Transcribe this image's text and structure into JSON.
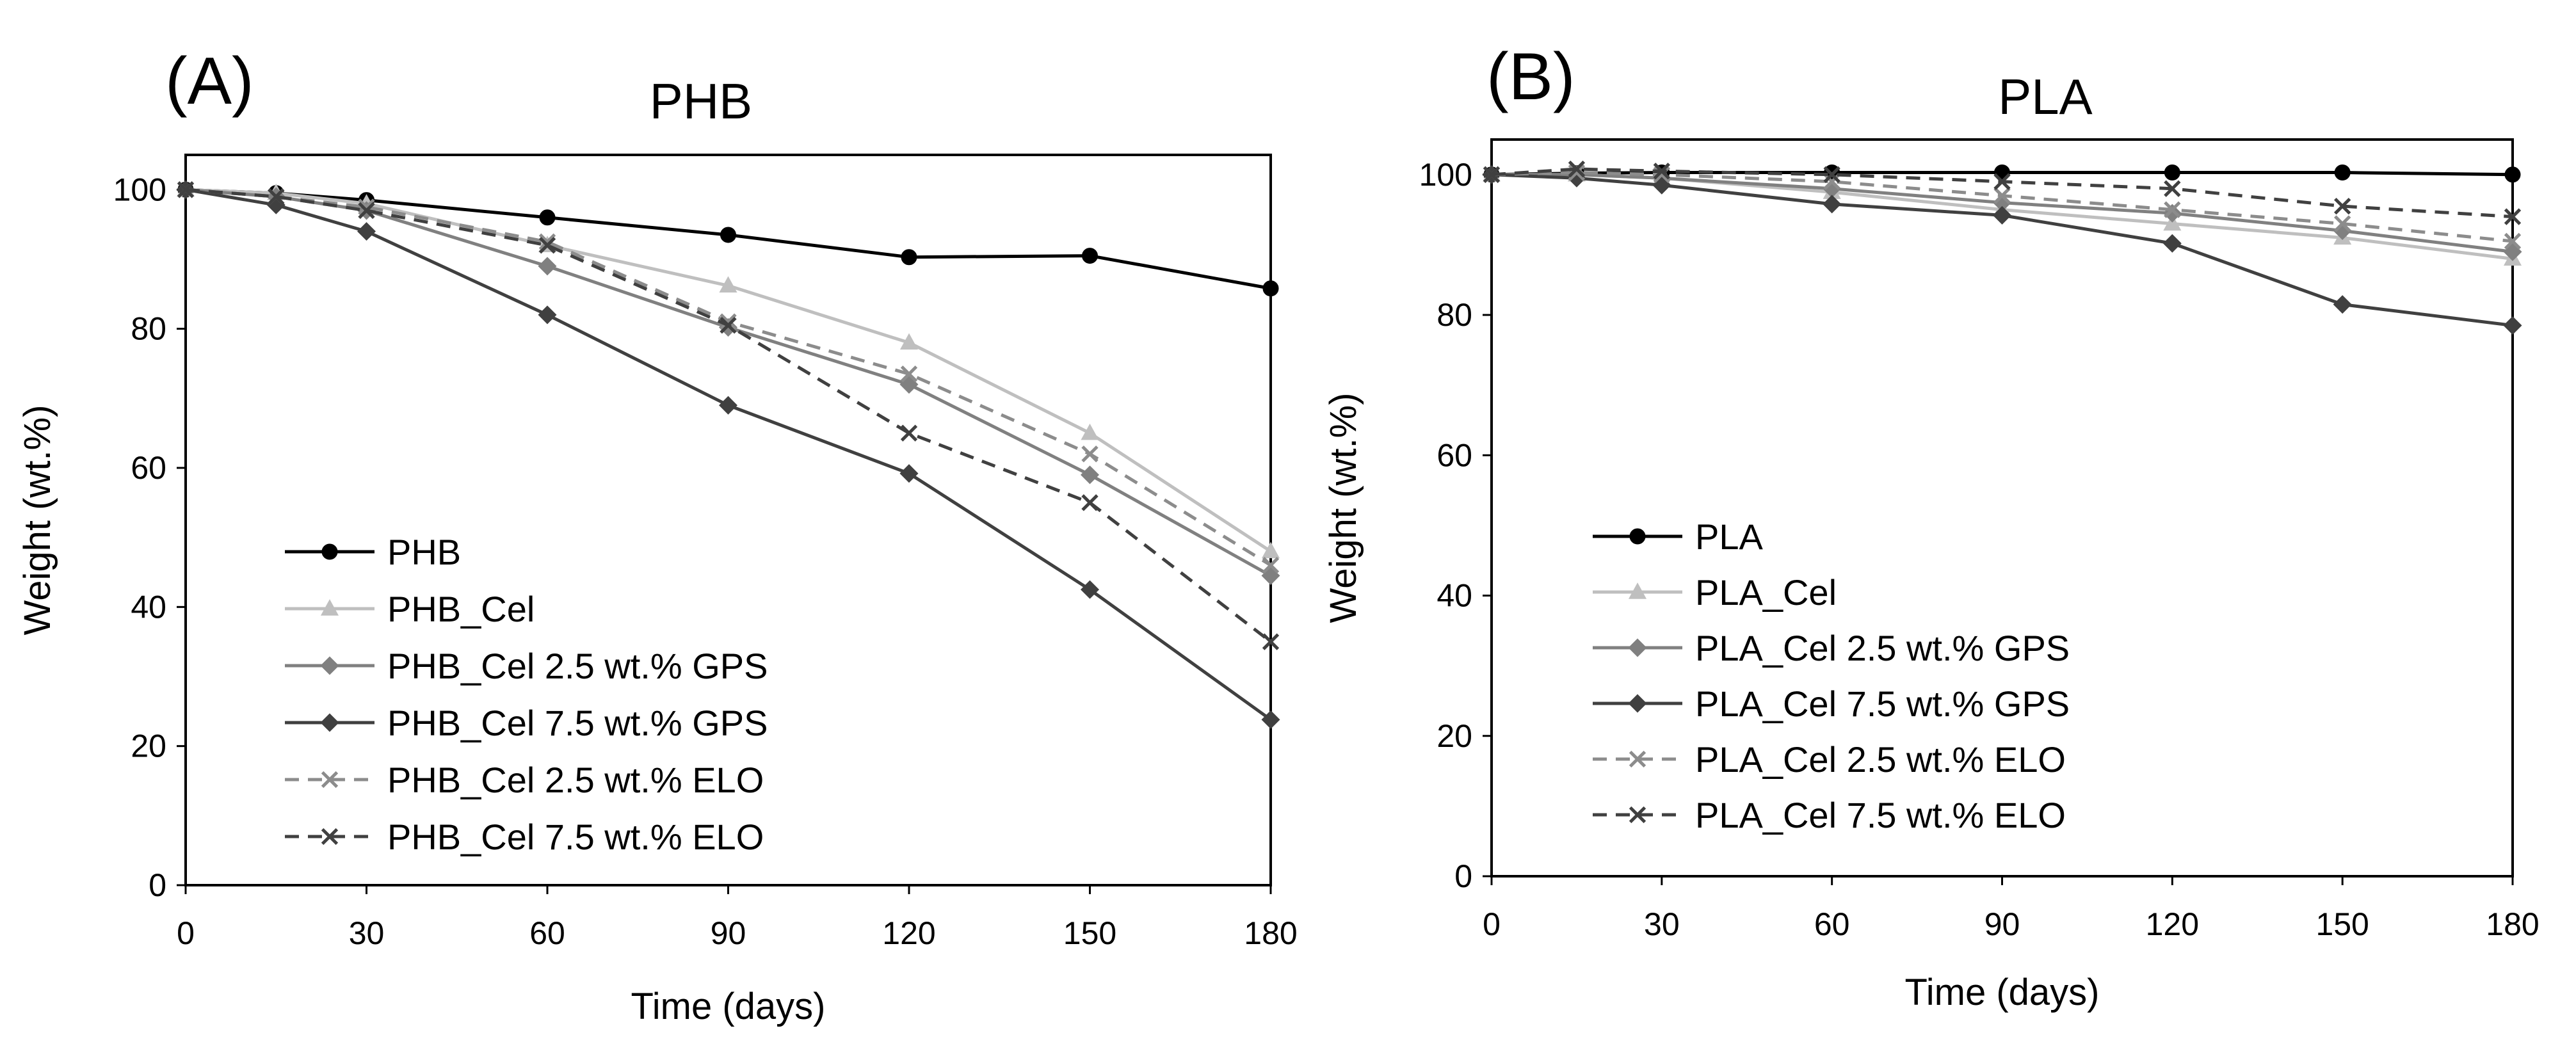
{
  "chart_data": [
    {
      "type": "line",
      "panel_label": "(A)",
      "title": "PHB",
      "xlabel": "Time (days)",
      "ylabel": "Weight (wt.%)",
      "xlim": [
        0,
        180
      ],
      "ylim": [
        0,
        105
      ],
      "xticks": [
        0,
        30,
        60,
        90,
        120,
        150,
        180
      ],
      "yticks": [
        0,
        20,
        40,
        60,
        80,
        100
      ],
      "grid": false,
      "legend_position": "bottom-left",
      "series": [
        {
          "name": "PHB",
          "color": "#000000",
          "dash": "solid",
          "marker": "circle",
          "x": [
            0,
            15,
            30,
            60,
            90,
            120,
            150,
            180
          ],
          "y": [
            100,
            99.5,
            98.5,
            96,
            93.5,
            90.3,
            90.5,
            85.8
          ]
        },
        {
          "name": "PHB_Cel",
          "color": "#bfbfbf",
          "dash": "solid",
          "marker": "triangle",
          "x": [
            0,
            15,
            30,
            60,
            90,
            120,
            150,
            180
          ],
          "y": [
            100,
            99.5,
            98,
            92,
            86.2,
            78,
            65,
            48
          ]
        },
        {
          "name": "PHB_Cel 2.5 wt.% GPS",
          "color": "#808080",
          "dash": "solid",
          "marker": "diamond",
          "x": [
            0,
            15,
            30,
            60,
            90,
            120,
            150,
            180
          ],
          "y": [
            100,
            99,
            97,
            89,
            80.2,
            72,
            59,
            44.5
          ]
        },
        {
          "name": "PHB_Cel 7.5 wt.% GPS",
          "color": "#404040",
          "dash": "solid",
          "marker": "diamond",
          "x": [
            0,
            15,
            30,
            60,
            90,
            120,
            150,
            180
          ],
          "y": [
            100,
            97.8,
            94,
            82,
            69,
            59.2,
            42.5,
            23.8
          ]
        },
        {
          "name": "PHB_Cel 2.5 wt.% ELO",
          "color": "#8c8c8c",
          "dash": "dashed",
          "marker": "x",
          "x": [
            0,
            15,
            30,
            60,
            90,
            120,
            150,
            180
          ],
          "y": [
            100,
            99,
            97.5,
            92.5,
            81,
            73.5,
            62,
            46
          ]
        },
        {
          "name": "PHB_Cel 7.5 wt.% ELO",
          "color": "#404040",
          "dash": "dashed",
          "marker": "x",
          "x": [
            0,
            15,
            30,
            60,
            90,
            120,
            150,
            180
          ],
          "y": [
            100,
            99,
            97,
            92,
            80.5,
            65,
            55,
            35
          ]
        }
      ]
    },
    {
      "type": "line",
      "panel_label": "(B)",
      "title": "PLA",
      "xlabel": "Time (days)",
      "ylabel": "Weight (wt.%)",
      "xlim": [
        0,
        180
      ],
      "ylim": [
        0,
        105
      ],
      "xticks": [
        0,
        30,
        60,
        90,
        120,
        150,
        180
      ],
      "yticks": [
        0,
        20,
        40,
        60,
        80,
        100
      ],
      "grid": false,
      "legend_position": "bottom-left",
      "series": [
        {
          "name": "PLA",
          "color": "#000000",
          "dash": "solid",
          "marker": "circle",
          "x": [
            0,
            15,
            30,
            60,
            90,
            120,
            150,
            180
          ],
          "y": [
            100,
            100.2,
            100.3,
            100.3,
            100.3,
            100.3,
            100.3,
            100
          ]
        },
        {
          "name": "PLA_Cel",
          "color": "#bfbfbf",
          "dash": "solid",
          "marker": "triangle",
          "x": [
            0,
            15,
            30,
            60,
            90,
            120,
            150,
            180
          ],
          "y": [
            100,
            100,
            99.5,
            97.5,
            95,
            93,
            91,
            88
          ]
        },
        {
          "name": "PLA_Cel 2.5 wt.% GPS",
          "color": "#808080",
          "dash": "solid",
          "marker": "diamond",
          "x": [
            0,
            15,
            30,
            60,
            90,
            120,
            150,
            180
          ],
          "y": [
            100,
            100,
            99.5,
            98,
            96,
            94.5,
            92,
            89
          ]
        },
        {
          "name": "PLA_Cel 7.5 wt.% GPS",
          "color": "#404040",
          "dash": "solid",
          "marker": "diamond",
          "x": [
            0,
            15,
            30,
            60,
            90,
            120,
            150,
            180
          ],
          "y": [
            100,
            99.5,
            98.5,
            95.8,
            94.2,
            90.2,
            81.5,
            78.5
          ]
        },
        {
          "name": "PLA_Cel 2.5 wt.% ELO",
          "color": "#8c8c8c",
          "dash": "dashed",
          "marker": "x",
          "x": [
            0,
            15,
            30,
            60,
            90,
            120,
            150,
            180
          ],
          "y": [
            100,
            100.3,
            100,
            99,
            97,
            95,
            93,
            90.5
          ]
        },
        {
          "name": "PLA_Cel 7.5 wt.% ELO",
          "color": "#404040",
          "dash": "dashed",
          "marker": "x",
          "x": [
            0,
            15,
            30,
            60,
            90,
            120,
            150,
            180
          ],
          "y": [
            100,
            100.8,
            100.5,
            100,
            99,
            98,
            95.5,
            94
          ]
        }
      ]
    }
  ]
}
